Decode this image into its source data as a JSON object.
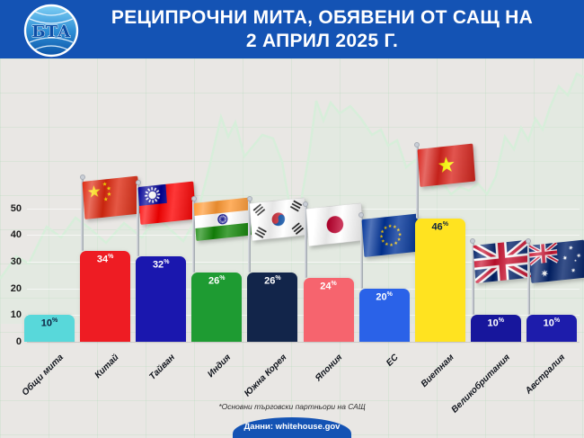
{
  "header": {
    "title_line1": "РЕЦИПРОЧНИ МИТА, ОБЯВЕНИ ОТ САЩ НА",
    "title_line2": "2 АПРИЛ 2025 Г.",
    "logo_text": "БТА"
  },
  "theme": {
    "header_bg": "#1453b4",
    "canvas_bg": "#e9e7e4",
    "watermark_green": "#d7eeda"
  },
  "chart_data": {
    "type": "bar",
    "title": "РЕЦИПРОЧНИ МИТА, ОБЯВЕНИ ОТ САЩ НА 2 АПРИЛ 2025 Г.",
    "categories": [
      "Общи мита",
      "Китай",
      "Тайван",
      "Индия",
      "Южна Корея",
      "Япония",
      "ЕС",
      "Виетнам",
      "Великобритания",
      "Австралия"
    ],
    "values": [
      10,
      34,
      32,
      26,
      26,
      24,
      20,
      46,
      10,
      10
    ],
    "labels": [
      "10%",
      "34%",
      "32%",
      "26%",
      "26%",
      "24%",
      "20%",
      "46%",
      "10%",
      "10%"
    ],
    "bar_colors": [
      "#58d8da",
      "#ee1c23",
      "#1a17ae",
      "#1e9b32",
      "#12254a",
      "#f6646e",
      "#2a62e8",
      "#ffe320",
      "#17169c",
      "#1d1cab"
    ],
    "label_colors": [
      "#0e2240",
      "#ffffff",
      "#ffffff",
      "#ffffff",
      "#ffffff",
      "#ffffff",
      "#ffffff",
      "#0e2240",
      "#ffffff",
      "#ffffff"
    ],
    "flags": [
      null,
      "china",
      "taiwan",
      "india",
      "south-korea",
      "japan",
      "eu",
      "vietnam",
      "uk",
      "australia"
    ],
    "yticks": [
      0,
      10,
      20,
      30,
      40,
      50
    ],
    "ylim": [
      0,
      52
    ],
    "xlabel": "",
    "ylabel": "",
    "grid": true,
    "legend": false
  },
  "footnote": "*Основни търговски партньори на САЩ",
  "source": {
    "label": "Данни: whitehouse.gov"
  }
}
